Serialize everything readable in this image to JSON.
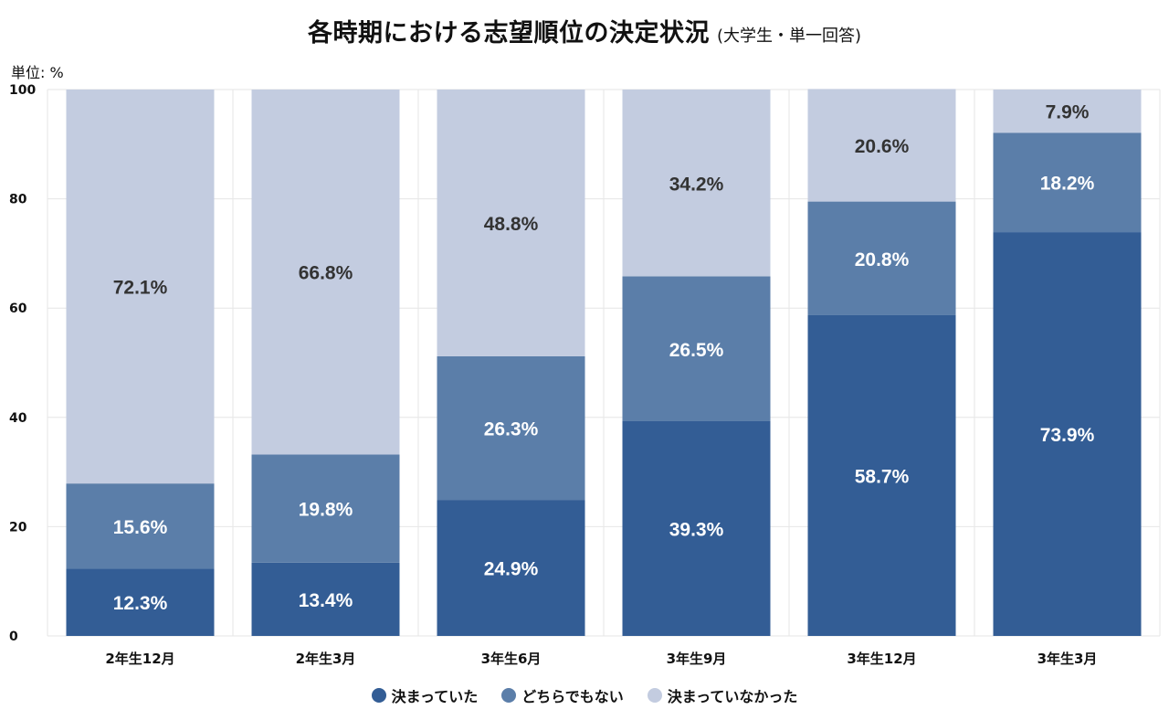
{
  "chart_data": {
    "type": "bar",
    "stacked": true,
    "title": "各時期における志望順位の決定状況",
    "subtitle": "(大学生・単一回答)",
    "unit_label": "単位: %",
    "categories": [
      "2年生12月",
      "2年生3月",
      "3年生6月",
      "3年生9月",
      "3年生12月",
      "3年生3月"
    ],
    "series": [
      {
        "name": "決まっていた",
        "values": [
          12.3,
          13.4,
          24.9,
          39.3,
          58.7,
          73.9
        ],
        "color": "#335d95",
        "label_color": "#ffffff"
      },
      {
        "name": "どちらでもない",
        "values": [
          15.6,
          19.8,
          26.3,
          26.5,
          20.8,
          18.2
        ],
        "color": "#5b7ea9",
        "label_color": "#ffffff"
      },
      {
        "name": "決まっていなかった",
        "values": [
          72.1,
          66.8,
          48.8,
          34.2,
          20.6,
          7.9
        ],
        "color": "#c3cce0",
        "label_color": "#333333"
      }
    ],
    "yticks": [
      0,
      20,
      40,
      60,
      80,
      100
    ],
    "ylim": [
      0,
      100
    ],
    "legend_position": "bottom-center"
  }
}
